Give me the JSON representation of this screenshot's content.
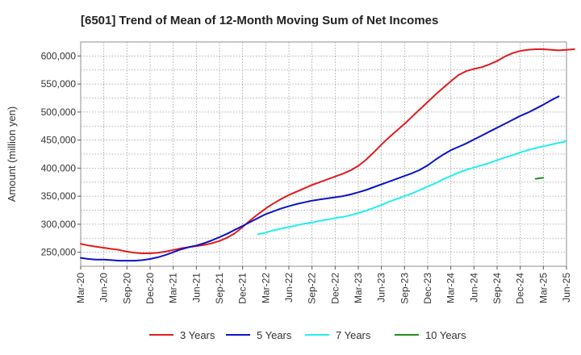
{
  "chart_data": {
    "type": "line",
    "title": "[6501]  Trend of Mean of 12-Month Moving Sum of Net Incomes",
    "ylabel": "Amount (million yen)",
    "xlabel": "",
    "ylim": [
      225000,
      625000
    ],
    "yticks": [
      250000,
      300000,
      350000,
      400000,
      450000,
      500000,
      550000,
      600000
    ],
    "ytick_labels": [
      "250,000",
      "300,000",
      "350,000",
      "400,000",
      "450,000",
      "500,000",
      "550,000",
      "600,000"
    ],
    "x_start": "Mar-20",
    "xtick_labels": [
      "Mar-20",
      "Jun-20",
      "Sep-20",
      "Dec-20",
      "Mar-21",
      "Jun-21",
      "Sep-21",
      "Dec-21",
      "Mar-22",
      "Jun-22",
      "Sep-22",
      "Dec-22",
      "Mar-23",
      "Jun-23",
      "Sep-23",
      "Dec-23",
      "Mar-24",
      "Jun-24",
      "Sep-24",
      "Dec-24",
      "Mar-25",
      "Jun-25"
    ],
    "grid": true,
    "legend_position": "bottom",
    "series": [
      {
        "name": "3 Years",
        "color": "#e31a1c",
        "start": "Mar-20",
        "values": [
          265000,
          262000,
          260000,
          258000,
          256000,
          254000,
          251000,
          249000,
          248000,
          248000,
          249000,
          251000,
          254000,
          257000,
          259000,
          261000,
          263000,
          266000,
          270000,
          276000,
          284000,
          295000,
          307000,
          318000,
          328000,
          337000,
          345000,
          352000,
          358000,
          364000,
          370000,
          375000,
          380000,
          385000,
          390000,
          396000,
          404000,
          415000,
          428000,
          442000,
          455000,
          467000,
          479000,
          492000,
          505000,
          518000,
          531000,
          543000,
          555000,
          566000,
          573000,
          577000,
          580000,
          585000,
          591000,
          599000,
          605000,
          609000,
          611000,
          612000,
          612000,
          611000,
          610000,
          611000,
          612000
        ]
      },
      {
        "name": "5 Years",
        "color": "#0a14c8",
        "start": "Mar-20",
        "values": [
          240000,
          238000,
          237000,
          237000,
          236000,
          235000,
          235000,
          235000,
          236000,
          238000,
          241000,
          245000,
          250000,
          255000,
          259000,
          262000,
          266000,
          271000,
          277000,
          283000,
          290000,
          297000,
          304000,
          311000,
          318000,
          323000,
          328000,
          332000,
          336000,
          339000,
          342000,
          344000,
          346000,
          348000,
          350000,
          353000,
          357000,
          361000,
          366000,
          371000,
          376000,
          381000,
          386000,
          391000,
          397000,
          405000,
          415000,
          424000,
          432000,
          438000,
          444000,
          451000,
          458000,
          465000,
          472000,
          479000,
          486000,
          493000,
          499000,
          506000,
          513000,
          521000,
          528000
        ]
      },
      {
        "name": "7 Years",
        "color": "#22eeee",
        "start": "Feb-22",
        "values": [
          282000,
          285000,
          289000,
          292000,
          295000,
          298000,
          301000,
          303000,
          306000,
          308000,
          311000,
          313000,
          316000,
          320000,
          324000,
          329000,
          334000,
          340000,
          345000,
          350000,
          355000,
          361000,
          367000,
          373000,
          380000,
          386000,
          392000,
          397000,
          401000,
          405000,
          409000,
          414000,
          419000,
          423000,
          428000,
          432000,
          436000,
          439000,
          442000,
          445000,
          448000
        ]
      },
      {
        "name": "10 Years",
        "color": "#228b22",
        "start": "Feb-25",
        "values": [
          381000,
          383000
        ]
      }
    ]
  }
}
